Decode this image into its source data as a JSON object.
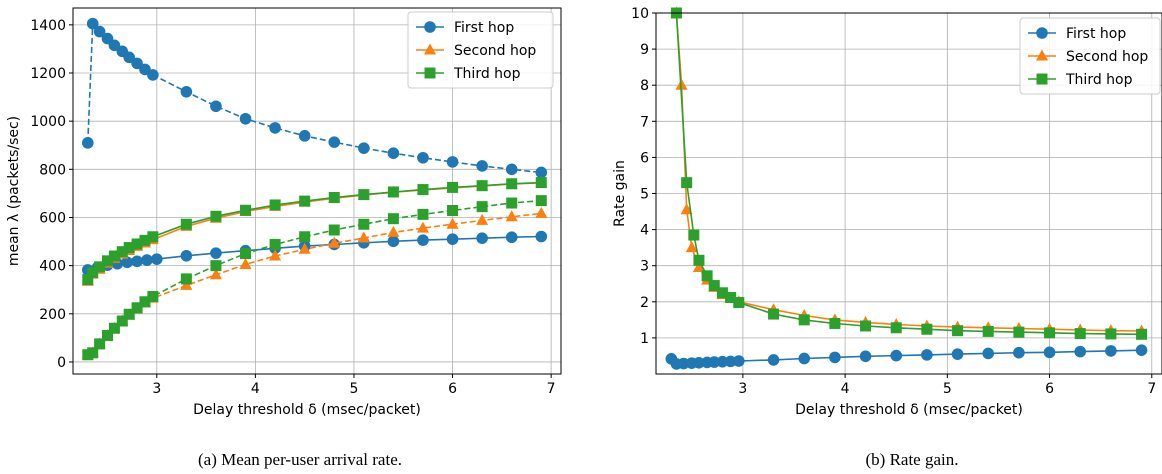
{
  "colors": {
    "first_hop": "#1f77b4",
    "second_hop": "#ff7f0e",
    "third_hop": "#2ca02c",
    "grid": "#b0b0b0",
    "axis": "#000000"
  },
  "chart_data": [
    {
      "type": "line",
      "caption": "(a) Mean per-user arrival rate.",
      "xlabel": "Delay threshold δ (msec/packet)",
      "ylabel": "mean λ (packets/sec)",
      "xlim": [
        2.15,
        7.1
      ],
      "ylim": [
        -50,
        1470
      ],
      "xticks": [
        3,
        4,
        5,
        6,
        7
      ],
      "yticks": [
        0,
        200,
        400,
        600,
        800,
        1000,
        1200,
        1400
      ],
      "grid": true,
      "legend_position": "top-right",
      "legend": [
        {
          "name": "First hop",
          "marker": "circle",
          "color": "#1f77b4"
        },
        {
          "name": "Second hop",
          "marker": "triangle",
          "color": "#ff7f0e"
        },
        {
          "name": "Third hop",
          "marker": "square",
          "color": "#2ca02c"
        }
      ],
      "series": [
        {
          "id": "a-first-solid",
          "legend_index": 0,
          "marker": "circle",
          "color": "#1f77b4",
          "style": "solid",
          "x": [
            2.3,
            2.4,
            2.5,
            2.6,
            2.7,
            2.8,
            2.9,
            3.0,
            3.3,
            3.6,
            3.9,
            4.2,
            4.5,
            4.8,
            5.1,
            5.4,
            5.7,
            6.0,
            6.3,
            6.6,
            6.9
          ],
          "y": [
            382,
            393,
            402,
            408,
            414,
            418,
            423,
            427,
            441,
            452,
            462,
            472,
            481,
            488,
            495,
            501,
            506,
            510,
            514,
            518,
            521
          ]
        },
        {
          "id": "a-first-dashed",
          "legend_index": 0,
          "marker": "circle",
          "color": "#1f77b4",
          "style": "dashed",
          "x": [
            2.3,
            2.35,
            2.42,
            2.5,
            2.57,
            2.65,
            2.72,
            2.8,
            2.88,
            2.96,
            3.3,
            3.6,
            3.9,
            4.2,
            4.5,
            4.8,
            5.1,
            5.4,
            5.7,
            6.0,
            6.3,
            6.6,
            6.9
          ],
          "y": [
            910,
            1405,
            1372,
            1343,
            1315,
            1290,
            1265,
            1240,
            1215,
            1192,
            1122,
            1062,
            1010,
            972,
            939,
            913,
            888,
            867,
            848,
            831,
            814,
            800,
            787
          ]
        },
        {
          "id": "a-second-solid",
          "legend_index": 1,
          "marker": "triangle",
          "color": "#ff7f0e",
          "style": "solid",
          "x": [
            2.3,
            2.35,
            2.42,
            2.5,
            2.57,
            2.65,
            2.72,
            2.8,
            2.88,
            2.96,
            3.3,
            3.6,
            3.9,
            4.2,
            4.5,
            4.8,
            5.1,
            5.4,
            5.7,
            6.0,
            6.3,
            6.6,
            6.9
          ],
          "y": [
            335,
            365,
            385,
            410,
            430,
            448,
            463,
            480,
            494,
            508,
            563,
            597,
            625,
            646,
            664,
            680,
            693,
            705,
            714,
            723,
            731,
            739,
            744
          ]
        },
        {
          "id": "a-second-dashed",
          "legend_index": 1,
          "marker": "triangle",
          "color": "#ff7f0e",
          "style": "dashed",
          "x": [
            2.3,
            2.35,
            2.42,
            2.5,
            2.57,
            2.65,
            2.72,
            2.8,
            2.88,
            2.96,
            3.3,
            3.6,
            3.9,
            4.2,
            4.5,
            4.8,
            5.1,
            5.4,
            5.7,
            6.0,
            6.3,
            6.6,
            6.9
          ],
          "y": [
            30,
            38,
            75,
            110,
            140,
            170,
            195,
            220,
            245,
            265,
            318,
            362,
            405,
            440,
            468,
            493,
            515,
            538,
            556,
            572,
            588,
            603,
            617
          ]
        },
        {
          "id": "a-third-solid",
          "legend_index": 2,
          "marker": "square",
          "color": "#2ca02c",
          "style": "solid",
          "x": [
            2.3,
            2.35,
            2.42,
            2.5,
            2.57,
            2.65,
            2.72,
            2.8,
            2.88,
            2.96,
            3.3,
            3.6,
            3.9,
            4.2,
            4.5,
            4.8,
            5.1,
            5.4,
            5.7,
            6.0,
            6.3,
            6.6,
            6.9
          ],
          "y": [
            342,
            372,
            395,
            420,
            440,
            458,
            475,
            490,
            505,
            520,
            572,
            605,
            630,
            652,
            668,
            683,
            695,
            706,
            716,
            725,
            732,
            740,
            745
          ]
        },
        {
          "id": "a-third-dashed",
          "legend_index": 2,
          "marker": "square",
          "color": "#2ca02c",
          "style": "dashed",
          "x": [
            2.3,
            2.35,
            2.42,
            2.5,
            2.57,
            2.65,
            2.72,
            2.8,
            2.88,
            2.96,
            3.3,
            3.6,
            3.9,
            4.2,
            4.5,
            4.8,
            5.1,
            5.4,
            5.7,
            6.0,
            6.3,
            6.6,
            6.9
          ],
          "y": [
            30,
            38,
            75,
            110,
            140,
            170,
            198,
            225,
            250,
            272,
            345,
            400,
            450,
            488,
            520,
            548,
            572,
            595,
            613,
            629,
            645,
            660,
            670
          ]
        }
      ]
    },
    {
      "type": "line",
      "caption": "(b) Rate gain.",
      "xlabel": "Delay threshold δ (msec/packet)",
      "ylabel": "Rate gain",
      "xlim": [
        2.15,
        7.1
      ],
      "ylim": [
        0,
        10
      ],
      "xticks": [
        3,
        4,
        5,
        6,
        7
      ],
      "yticks": [
        1,
        2,
        3,
        4,
        5,
        6,
        7,
        8,
        9,
        10
      ],
      "grid": true,
      "legend_position": "top-right",
      "legend": [
        {
          "name": "First hop",
          "marker": "circle",
          "color": "#1f77b4"
        },
        {
          "name": "Second hop",
          "marker": "triangle",
          "color": "#ff7f0e"
        },
        {
          "name": "Third hop",
          "marker": "square",
          "color": "#2ca02c"
        }
      ],
      "series": [
        {
          "id": "b-first",
          "legend_index": 0,
          "marker": "circle",
          "color": "#1f77b4",
          "style": "solid",
          "x": [
            2.3,
            2.35,
            2.42,
            2.5,
            2.57,
            2.65,
            2.72,
            2.8,
            2.88,
            2.96,
            3.3,
            3.6,
            3.9,
            4.2,
            4.5,
            4.8,
            5.1,
            5.4,
            5.7,
            6.0,
            6.3,
            6.6,
            6.9
          ],
          "y": [
            0.42,
            0.28,
            0.29,
            0.3,
            0.31,
            0.32,
            0.33,
            0.34,
            0.35,
            0.36,
            0.39,
            0.43,
            0.46,
            0.49,
            0.51,
            0.53,
            0.55,
            0.57,
            0.59,
            0.6,
            0.62,
            0.64,
            0.66
          ]
        },
        {
          "id": "b-second",
          "legend_index": 1,
          "marker": "triangle",
          "color": "#ff7f0e",
          "style": "solid",
          "x": [
            2.35,
            2.4,
            2.45,
            2.5,
            2.57,
            2.65,
            2.72,
            2.8,
            2.88,
            2.96,
            3.3,
            3.6,
            3.9,
            4.2,
            4.5,
            4.8,
            5.1,
            5.4,
            5.7,
            6.0,
            6.3,
            6.6,
            6.9
          ],
          "y": [
            10.0,
            8.0,
            4.55,
            3.5,
            2.95,
            2.6,
            2.4,
            2.2,
            2.1,
            2.0,
            1.78,
            1.62,
            1.5,
            1.43,
            1.37,
            1.33,
            1.3,
            1.28,
            1.26,
            1.24,
            1.22,
            1.2,
            1.19
          ]
        },
        {
          "id": "b-third",
          "legend_index": 2,
          "marker": "square",
          "color": "#2ca02c",
          "style": "solid",
          "x": [
            2.35,
            2.45,
            2.52,
            2.57,
            2.65,
            2.72,
            2.8,
            2.88,
            2.96,
            3.3,
            3.6,
            3.9,
            4.2,
            4.5,
            4.8,
            5.1,
            5.4,
            5.7,
            6.0,
            6.3,
            6.6,
            6.9
          ],
          "y": [
            10.0,
            5.3,
            3.85,
            3.15,
            2.72,
            2.45,
            2.25,
            2.12,
            1.98,
            1.66,
            1.5,
            1.4,
            1.33,
            1.28,
            1.24,
            1.2,
            1.18,
            1.16,
            1.14,
            1.12,
            1.11,
            1.1
          ]
        }
      ]
    }
  ]
}
